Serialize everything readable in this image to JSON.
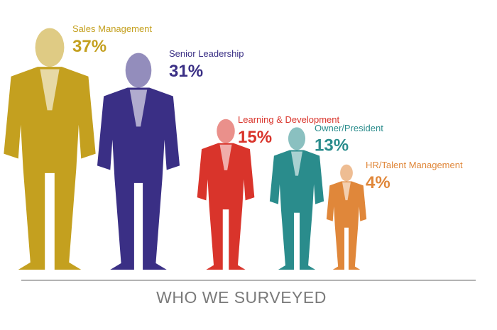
{
  "chart_data": {
    "type": "pictograph",
    "title": "WHO WE SURVEYED",
    "categories": [
      "Sales Management",
      "Senior Leadership",
      "Learning & Development",
      "Owner/President",
      "HR/Talent Management"
    ],
    "values": [
      37,
      31,
      15,
      13,
      4
    ],
    "value_labels": [
      "37%",
      "31%",
      "15%",
      "13%",
      "4%"
    ],
    "colors": [
      "#c4a01f",
      "#3a2f85",
      "#d9342b",
      "#2a8c8c",
      "#e0873a"
    ]
  }
}
